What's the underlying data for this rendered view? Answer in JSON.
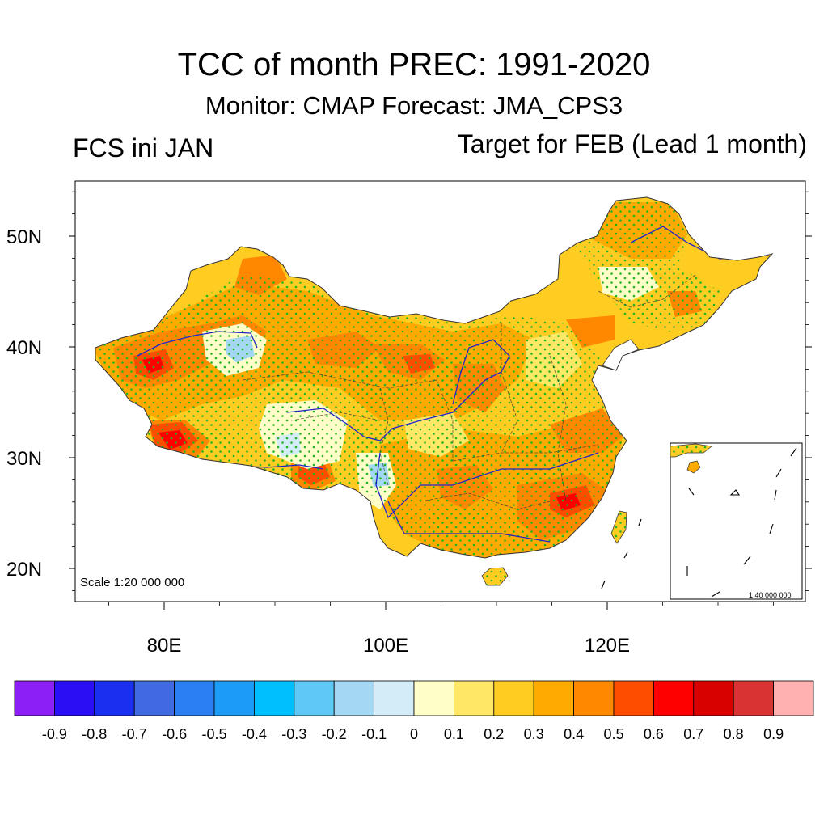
{
  "title": "TCC of month PREC: 1991-2020",
  "subtitle": "Monitor: CMAP   Forecast: JMA_CPS3",
  "left_label": "FCS ini JAN",
  "right_label": "Target for FEB (Lead 1 month)",
  "map": {
    "scale_main": "Scale 1:20 000 000",
    "scale_inset": "1:40 000 000",
    "lat_labels": [
      "50N",
      "40N",
      "30N",
      "20N"
    ],
    "lat_values": [
      50,
      40,
      30,
      20
    ],
    "lon_labels": [
      "80E",
      "100E",
      "120E"
    ],
    "lon_values": [
      80,
      100,
      120
    ],
    "lon_range": [
      72,
      138
    ],
    "lat_range": [
      17,
      55
    ]
  },
  "colorbar": {
    "tick_labels": [
      "-0.9",
      "-0.8",
      "-0.7",
      "-0.6",
      "-0.5",
      "-0.4",
      "-0.3",
      "-0.2",
      "-0.1",
      "0",
      "0.1",
      "0.2",
      "0.3",
      "0.4",
      "0.5",
      "0.6",
      "0.7",
      "0.8",
      "0.9"
    ],
    "colors": [
      "#8c1ff5",
      "#2a0ff5",
      "#1a2ff0",
      "#4169e1",
      "#2b7ff2",
      "#1c9bf7",
      "#00bfff",
      "#5fc8f5",
      "#a4d8f2",
      "#d3ecf8",
      "#fffdc8",
      "#ffe866",
      "#ffcc22",
      "#ffaa00",
      "#ff8800",
      "#ff4d00",
      "#ff0000",
      "#d90000",
      "#d93333",
      "#ffb0b0"
    ]
  },
  "colors": {
    "stipple": "#22b322",
    "river": "#2222cc",
    "border": "#333333"
  }
}
